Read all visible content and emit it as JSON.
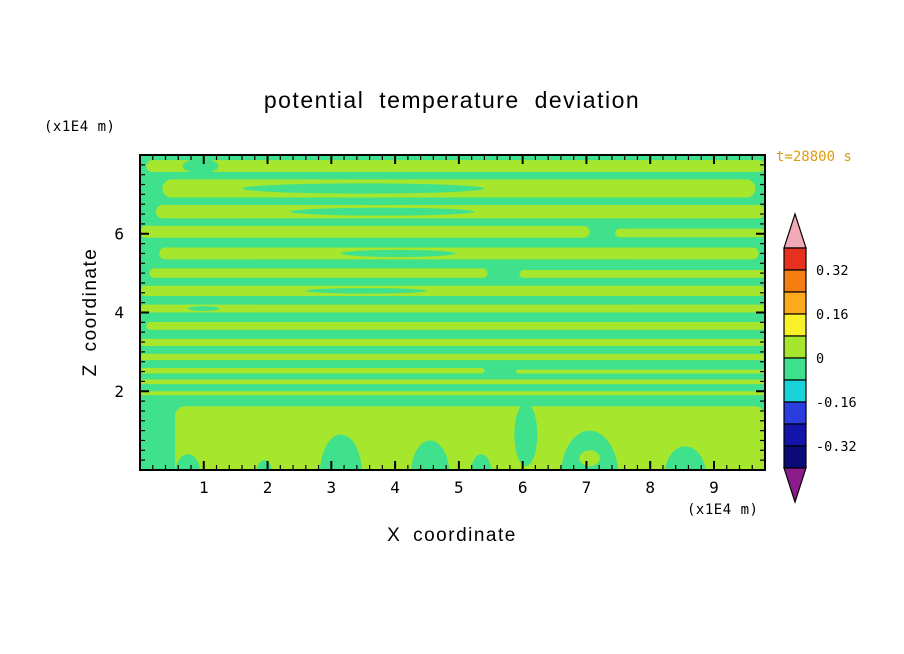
{
  "page": {
    "background": "#ffffff",
    "text_color": "#000000"
  },
  "chart_data": {
    "type": "contour",
    "title": "potential temperature deviation",
    "xlabel": "X coordinate",
    "ylabel": "Z coordinate",
    "x_unit": "(x1E4 m)",
    "y_unit": "(x1E4 m)",
    "annotation": "t=28800 s",
    "annotation_color": "#de9a14",
    "xlim": [
      0,
      9.8
    ],
    "ylim": [
      0,
      8
    ],
    "x_ticks": [
      1,
      2,
      3,
      4,
      5,
      6,
      7,
      8,
      9
    ],
    "x_tick_labels": [
      "1",
      "2",
      "3",
      "4",
      "5",
      "6",
      "7",
      "8",
      "9"
    ],
    "y_ticks": [
      2,
      4,
      6
    ],
    "y_tick_labels": [
      "2",
      "4",
      "6"
    ],
    "x_minor_step": 0.2,
    "y_minor_step": 0.25,
    "contour_interval": 0.08,
    "colorbar": {
      "labels": [
        "0.32",
        "0.16",
        "0",
        "-0.16",
        "-0.32"
      ],
      "label_boundaries": [
        1,
        3,
        5,
        7,
        9
      ],
      "over_color": "#f2a9b6",
      "under_color": "#8c1b8c",
      "segments": [
        {
          "from": 0.32,
          "to": 0.4,
          "color": "#e8301e"
        },
        {
          "from": 0.24,
          "to": 0.32,
          "color": "#f57d12"
        },
        {
          "from": 0.16,
          "to": 0.24,
          "color": "#fbaa1c"
        },
        {
          "from": 0.08,
          "to": 0.16,
          "color": "#f8f028"
        },
        {
          "from": 0.0,
          "to": 0.08,
          "color": "#a6e62c"
        },
        {
          "from": -0.08,
          "to": 0.0,
          "color": "#3fe18c"
        },
        {
          "from": -0.16,
          "to": -0.08,
          "color": "#1ad2da"
        },
        {
          "from": -0.24,
          "to": -0.16,
          "color": "#2a3ddf"
        },
        {
          "from": -0.32,
          "to": -0.24,
          "color": "#1414aa"
        },
        {
          "from": -0.4,
          "to": -0.32,
          "color": "#0a0a78"
        }
      ]
    },
    "field": {
      "background_color": "#3fe18c",
      "background_level": "-0.08 to 0",
      "band_color": "#a6e62c",
      "band_level": "0 to 0.08",
      "bands": [
        {
          "z": 7.72,
          "h": 0.3,
          "x1": 0.1,
          "x2": 9.8
        },
        {
          "z": 7.15,
          "h": 0.46,
          "x1": 0.35,
          "x2": 9.65
        },
        {
          "z": 6.56,
          "h": 0.34,
          "x1": 0.25,
          "x2": 9.8
        },
        {
          "z": 6.05,
          "h": 0.3,
          "x1": 0.0,
          "x2": 7.05
        },
        {
          "z": 6.02,
          "h": 0.22,
          "x1": 7.45,
          "x2": 9.8
        },
        {
          "z": 5.5,
          "h": 0.3,
          "x1": 0.3,
          "x2": 9.7
        },
        {
          "z": 5.0,
          "h": 0.24,
          "x1": 0.15,
          "x2": 5.45
        },
        {
          "z": 4.98,
          "h": 0.2,
          "x1": 5.95,
          "x2": 9.8
        },
        {
          "z": 4.55,
          "h": 0.26,
          "x1": 0.0,
          "x2": 9.8
        },
        {
          "z": 4.1,
          "h": 0.2,
          "x1": 0.0,
          "x2": 9.8
        },
        {
          "z": 3.66,
          "h": 0.2,
          "x1": 0.1,
          "x2": 9.8
        },
        {
          "z": 3.24,
          "h": 0.18,
          "x1": 0.0,
          "x2": 9.8
        },
        {
          "z": 2.87,
          "h": 0.16,
          "x1": 0.0,
          "x2": 9.8
        },
        {
          "z": 2.52,
          "h": 0.14,
          "x1": 0.0,
          "x2": 5.4
        },
        {
          "z": 2.5,
          "h": 0.1,
          "x1": 5.9,
          "x2": 9.8
        },
        {
          "z": 2.24,
          "h": 0.12,
          "x1": 0.0,
          "x2": 9.8
        },
        {
          "z": 1.95,
          "h": 0.1,
          "x1": 0.0,
          "x2": 9.8
        }
      ],
      "gaps": [
        {
          "x": 0.95,
          "z": 7.72,
          "rx": 0.28,
          "rz": 0.18
        },
        {
          "x": 3.5,
          "z": 7.15,
          "rx": 1.9,
          "rz": 0.13
        },
        {
          "x": 3.8,
          "z": 6.56,
          "rx": 1.45,
          "rz": 0.1
        },
        {
          "x": 4.05,
          "z": 5.5,
          "rx": 0.9,
          "rz": 0.09
        },
        {
          "x": 3.55,
          "z": 4.55,
          "rx": 0.95,
          "rz": 0.07
        },
        {
          "x": 1.0,
          "z": 4.1,
          "rx": 0.25,
          "rz": 0.06
        }
      ],
      "bottom_region": {
        "x1": 0.55,
        "x2": 9.8,
        "z_top": 1.62
      },
      "bottom_blobs": [
        {
          "x": 0.75,
          "z": -0.1,
          "rx": 0.2,
          "rz": 0.5
        },
        {
          "x": 1.95,
          "z": -0.05,
          "rx": 0.12,
          "rz": 0.3
        },
        {
          "x": 3.15,
          "z": -0.1,
          "rx": 0.33,
          "rz": 1.0
        },
        {
          "x": 4.55,
          "z": -0.1,
          "rx": 0.3,
          "rz": 0.85
        },
        {
          "x": 5.35,
          "z": -0.05,
          "rx": 0.16,
          "rz": 0.45
        },
        {
          "x": 6.05,
          "z": 0.9,
          "rx": 0.18,
          "rz": 0.8
        },
        {
          "x": 7.05,
          "z": -0.15,
          "rx": 0.45,
          "rz": 1.15
        },
        {
          "x": 8.55,
          "z": -0.1,
          "rx": 0.32,
          "rz": 0.7
        }
      ],
      "bottom_spots": [
        {
          "x": 7.05,
          "z": 0.3,
          "rx": 0.16,
          "rz": 0.2
        }
      ]
    }
  }
}
